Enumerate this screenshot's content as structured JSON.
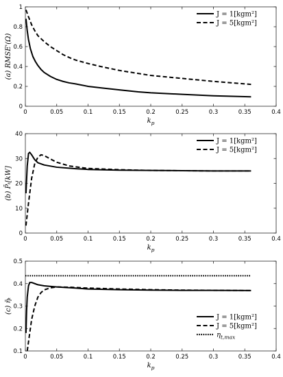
{
  "chart_data": [
    {
      "type": "line",
      "ylabel": "(a) RMSE'(Ω)",
      "xlabel": "k",
      "xlabel_sub": "p",
      "xlim": [
        0,
        0.4
      ],
      "ylim": [
        0,
        1
      ],
      "xticks": [
        "0",
        "0.05",
        "0.1",
        "0.15",
        "0.2",
        "0.25",
        "0.3",
        "0.35",
        "0.4"
      ],
      "yticks": [
        "0",
        "0.2",
        "0.4",
        "0.6",
        "0.8",
        "1"
      ],
      "legend_position": "top-right",
      "series": [
        {
          "name": "J = 1[kgm²]",
          "style": "solid",
          "x": [
            0.001,
            0.003,
            0.005,
            0.008,
            0.012,
            0.016,
            0.02,
            0.025,
            0.03,
            0.04,
            0.05,
            0.06,
            0.07,
            0.08,
            0.1,
            0.12,
            0.15,
            0.18,
            0.2,
            0.25,
            0.3,
            0.36
          ],
          "y": [
            0.88,
            0.76,
            0.67,
            0.58,
            0.5,
            0.45,
            0.41,
            0.37,
            0.34,
            0.3,
            0.27,
            0.25,
            0.235,
            0.225,
            0.2,
            0.185,
            0.165,
            0.145,
            0.135,
            0.12,
            0.105,
            0.095
          ]
        },
        {
          "name": "J = 5[kgm²]",
          "style": "dashed",
          "x": [
            0.001,
            0.005,
            0.01,
            0.015,
            0.02,
            0.03,
            0.04,
            0.05,
            0.06,
            0.07,
            0.08,
            0.1,
            0.12,
            0.15,
            0.18,
            0.2,
            0.25,
            0.3,
            0.36
          ],
          "y": [
            0.97,
            0.9,
            0.82,
            0.76,
            0.71,
            0.65,
            0.6,
            0.56,
            0.52,
            0.49,
            0.465,
            0.43,
            0.4,
            0.36,
            0.33,
            0.31,
            0.28,
            0.25,
            0.22
          ]
        }
      ]
    },
    {
      "type": "line",
      "ylabel": "(b) P̄ₜ[kW]",
      "xlabel": "k",
      "xlabel_sub": "p",
      "xlim": [
        0,
        0.4
      ],
      "ylim": [
        0,
        40
      ],
      "xticks": [
        "0",
        "0.05",
        "0.1",
        "0.15",
        "0.2",
        "0.25",
        "0.3",
        "0.35",
        "0.4"
      ],
      "yticks": [
        "0",
        "10",
        "20",
        "30",
        "40"
      ],
      "legend_position": "top-right",
      "series": [
        {
          "name": "J = 1[kgm²]",
          "style": "solid",
          "x": [
            0.001,
            0.003,
            0.005,
            0.007,
            0.01,
            0.015,
            0.02,
            0.03,
            0.05,
            0.08,
            0.1,
            0.15,
            0.2,
            0.25,
            0.3,
            0.36
          ],
          "y": [
            16,
            27,
            32,
            32.5,
            31.5,
            29.5,
            28.3,
            27.4,
            26.5,
            25.9,
            25.6,
            25.3,
            25.2,
            25.1,
            25,
            25
          ]
        },
        {
          "name": "J = 5[kgm²]",
          "style": "dashed",
          "x": [
            0.001,
            0.005,
            0.01,
            0.015,
            0.02,
            0.025,
            0.03,
            0.04,
            0.05,
            0.07,
            0.1,
            0.15,
            0.2,
            0.25,
            0.3,
            0.36
          ],
          "y": [
            3,
            12,
            22,
            28,
            30.5,
            31.5,
            31.2,
            29.8,
            28.5,
            27,
            26,
            25.5,
            25.2,
            25.1,
            25,
            25
          ]
        }
      ]
    },
    {
      "type": "line",
      "ylabel": "(c) η̄ₜ",
      "xlabel": "k",
      "xlabel_sub": "p",
      "xlim": [
        0,
        0.4
      ],
      "ylim": [
        0.1,
        0.5
      ],
      "xticks": [
        "0",
        "0.05",
        "0.1",
        "0.15",
        "0.2",
        "0.25",
        "0.3",
        "0.35",
        "0.4"
      ],
      "yticks": [
        "0.1",
        "0.2",
        "0.3",
        "0.4",
        "0.5"
      ],
      "legend_position": "bottom-right",
      "series": [
        {
          "name": "J = 1[kgm²]",
          "style": "solid",
          "x": [
            0.001,
            0.002,
            0.003,
            0.005,
            0.007,
            0.01,
            0.015,
            0.02,
            0.03,
            0.05,
            0.08,
            0.1,
            0.15,
            0.2,
            0.25,
            0.3,
            0.36
          ],
          "y": [
            0.18,
            0.28,
            0.34,
            0.39,
            0.405,
            0.405,
            0.4,
            0.395,
            0.39,
            0.385,
            0.38,
            0.376,
            0.373,
            0.371,
            0.37,
            0.37,
            0.369
          ]
        },
        {
          "name": "J = 5[kgm²]",
          "style": "dashed",
          "x": [
            0.003,
            0.005,
            0.008,
            0.01,
            0.015,
            0.02,
            0.025,
            0.03,
            0.04,
            0.05,
            0.07,
            0.1,
            0.15,
            0.2,
            0.25,
            0.3,
            0.36
          ],
          "y": [
            0.1,
            0.14,
            0.2,
            0.24,
            0.3,
            0.34,
            0.36,
            0.372,
            0.381,
            0.385,
            0.384,
            0.38,
            0.376,
            0.373,
            0.371,
            0.37,
            0.369
          ]
        },
        {
          "name": "η_{t,max}",
          "style": "dotted",
          "x": [
            0.0,
            0.36
          ],
          "y": [
            0.435,
            0.435
          ]
        }
      ]
    }
  ]
}
